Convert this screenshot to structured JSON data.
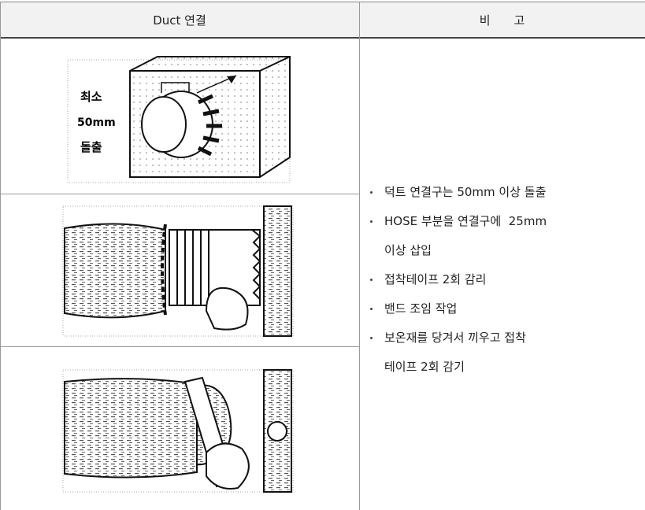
{
  "header": {
    "col1": "Duct 연결",
    "col2": "비　　고"
  },
  "figures": [
    {
      "labels": [
        "최소",
        "50mm",
        "돌출"
      ]
    },
    {
      "labels": []
    },
    {
      "labels": []
    }
  ],
  "notes": [
    {
      "lines": [
        "덕트 연결구는 50mm 이상 돌출"
      ]
    },
    {
      "lines": [
        "HOSE 부분을 연결구에  25mm",
        "이상 삽입"
      ]
    },
    {
      "lines": [
        "접착테이프 2회 감리"
      ]
    },
    {
      "lines": [
        "밴드 조임 작업"
      ]
    },
    {
      "lines": [
        "보온재를 당겨서 끼우고 접착",
        "테이프 2회 감기"
      ]
    }
  ]
}
